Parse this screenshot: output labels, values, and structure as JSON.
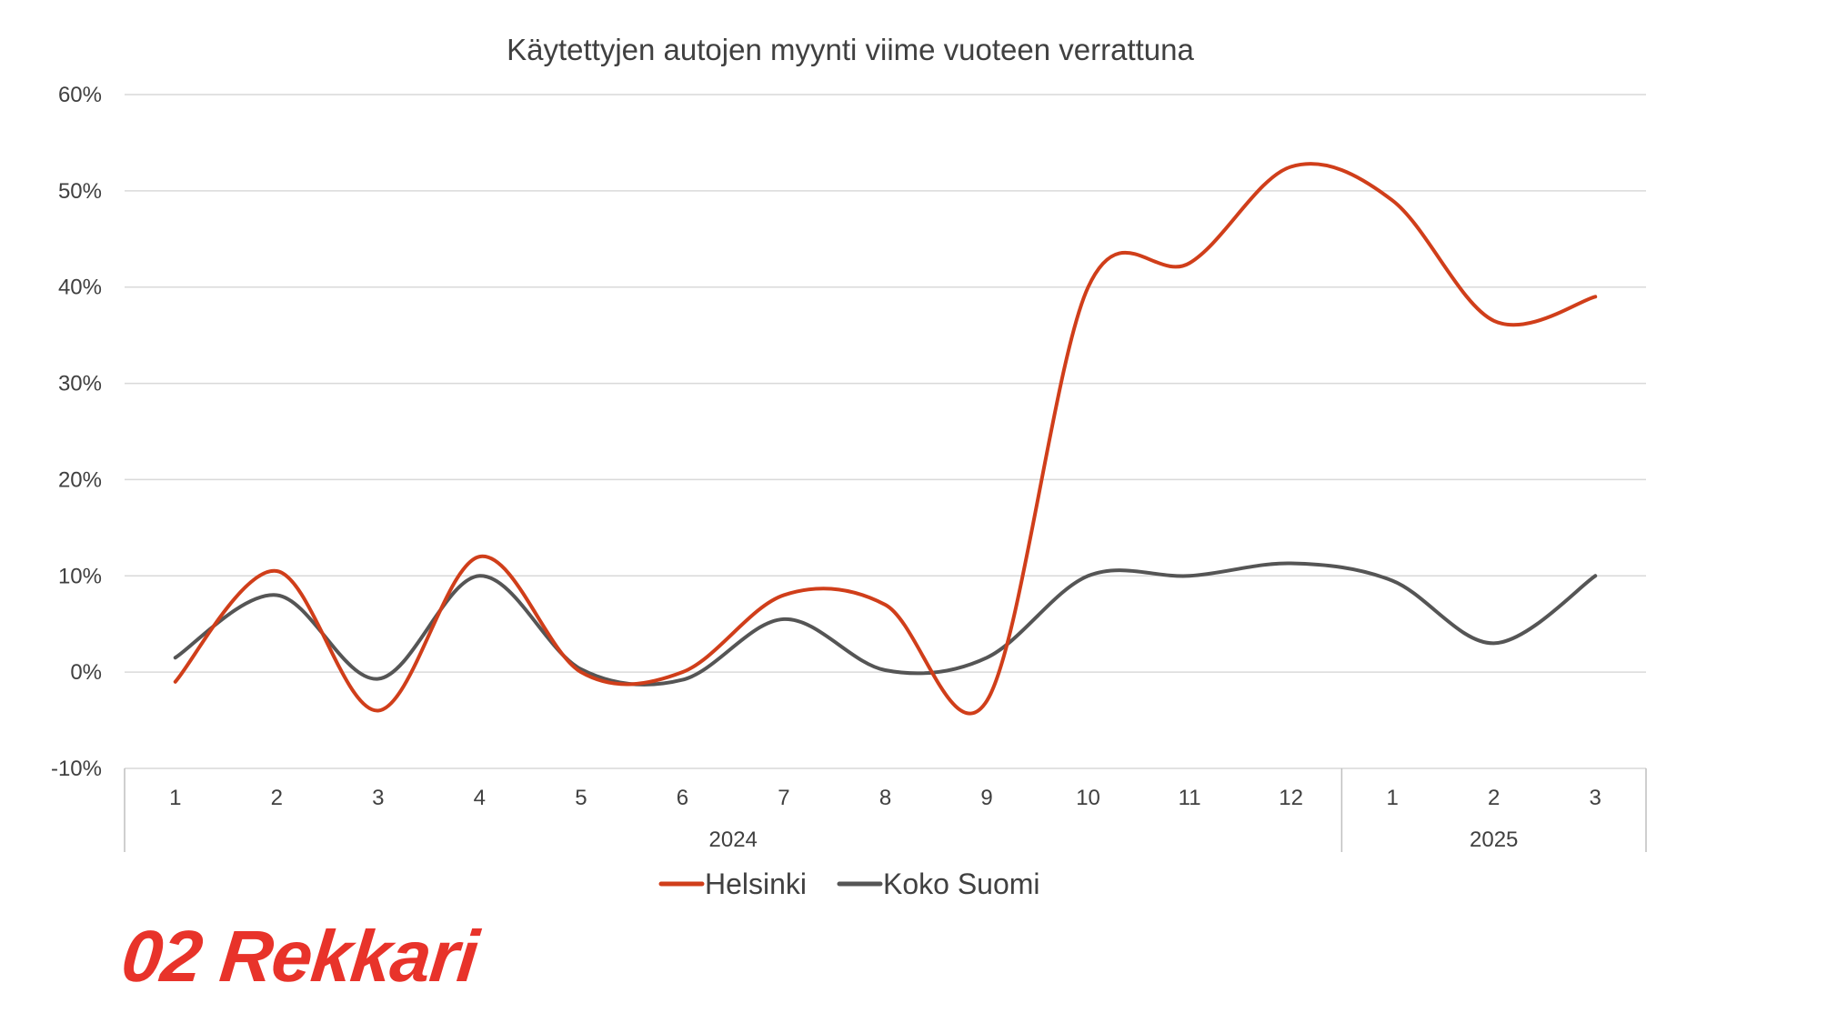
{
  "brand": {
    "logo_text": "02 Rekkari"
  },
  "colors": {
    "helsinki": "#d03e1a",
    "koko_suomi": "#555555",
    "grid": "#d9d9d9",
    "axis": "#bfbfbf",
    "brand": "#e8332a"
  },
  "chart_data": {
    "type": "line",
    "smooth": true,
    "title": "Käytettyjen autojen myynti viime vuoteen verrattuna",
    "categories": [
      "1",
      "2",
      "3",
      "4",
      "5",
      "6",
      "7",
      "8",
      "9",
      "10",
      "11",
      "12",
      "1",
      "2",
      "3"
    ],
    "groups": [
      {
        "label": "2024",
        "count": 12
      },
      {
        "label": "2025",
        "count": 3
      }
    ],
    "y_ticks": [
      "60%",
      "50%",
      "40%",
      "30%",
      "20%",
      "10%",
      "0%",
      "-10%"
    ],
    "ylim": [
      -10,
      60
    ],
    "grid": true,
    "legend_position": "bottom",
    "series": [
      {
        "name": "Helsinki",
        "color": "#d03e1a",
        "values": [
          -1,
          10.5,
          -4,
          12,
          0,
          0,
          8,
          7,
          -3,
          40,
          42.5,
          52.5,
          49,
          36.5,
          39
        ]
      },
      {
        "name": "Koko Suomi",
        "color": "#555555",
        "values": [
          1.5,
          8,
          -0.7,
          10,
          0.3,
          -0.8,
          5.5,
          0.2,
          1.5,
          10,
          10,
          11.3,
          9.5,
          3,
          10
        ]
      }
    ]
  }
}
